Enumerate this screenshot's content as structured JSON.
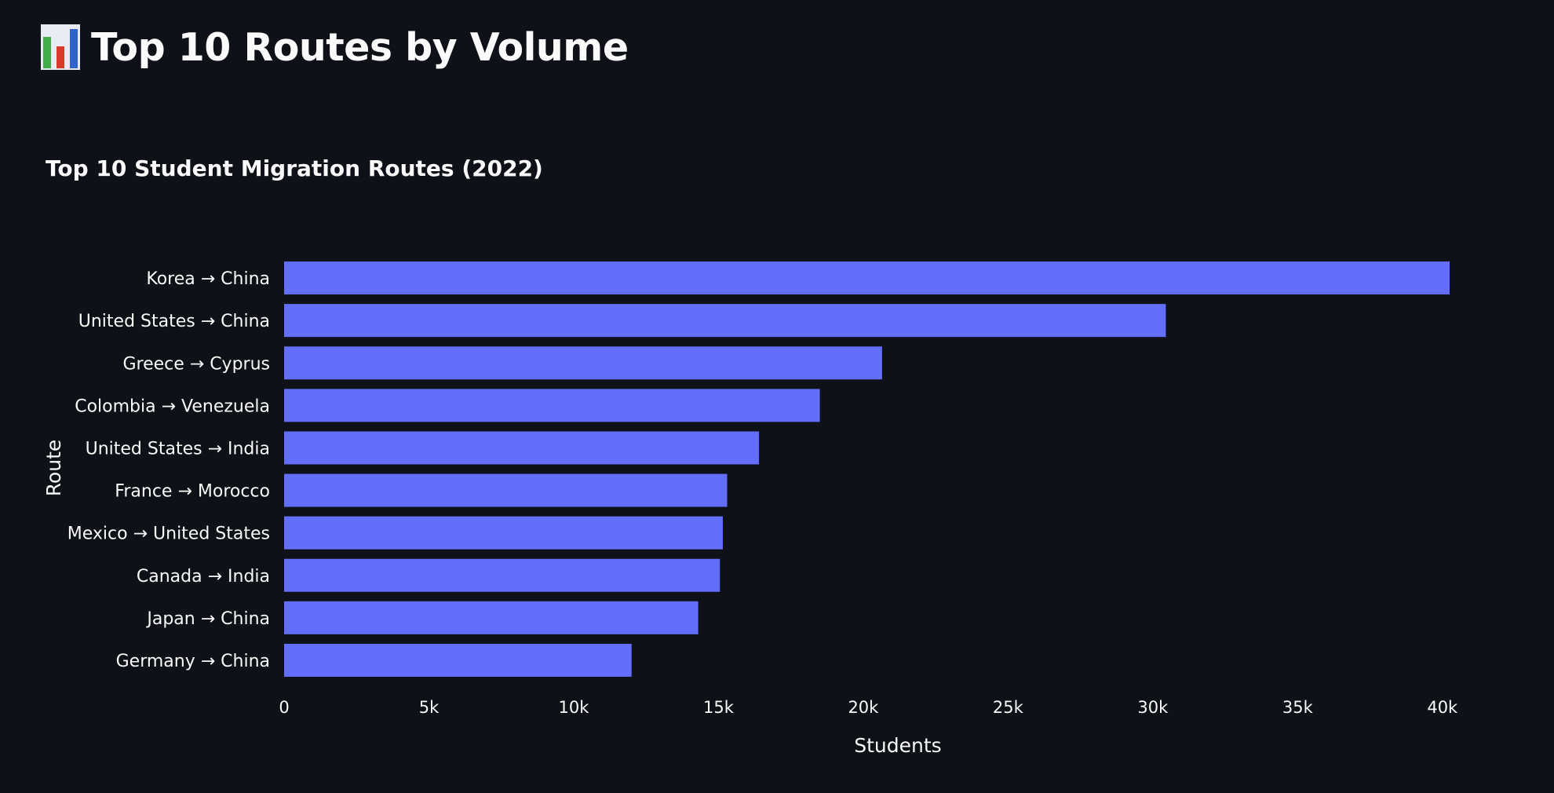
{
  "header": {
    "title": "Top 10 Routes by Volume",
    "icon": "bar-chart-icon"
  },
  "chart_data": {
    "type": "bar",
    "orientation": "horizontal",
    "title": "Top 10 Student Migration Routes (2022)",
    "xlabel": "Students",
    "ylabel": "Route",
    "categories": [
      "Korea → China",
      "United States → China",
      "Greece → Cyprus",
      "Colombia → Venezuela",
      "United States → India",
      "France → Morocco",
      "Mexico → United States",
      "Canada → India",
      "Japan → China",
      "Germany → China"
    ],
    "values": [
      40250,
      30450,
      20650,
      18500,
      16400,
      15300,
      15150,
      15050,
      14300,
      12000
    ],
    "xlim": [
      0,
      40250
    ],
    "xticks": [
      0,
      5000,
      10000,
      15000,
      20000,
      25000,
      30000,
      35000,
      40000
    ],
    "xtick_labels": [
      "0",
      "5k",
      "10k",
      "15k",
      "20k",
      "25k",
      "30k",
      "35k",
      "40k"
    ],
    "grid": false,
    "legend": "none",
    "bar_color": "#636efa",
    "background": "#0e1117"
  }
}
